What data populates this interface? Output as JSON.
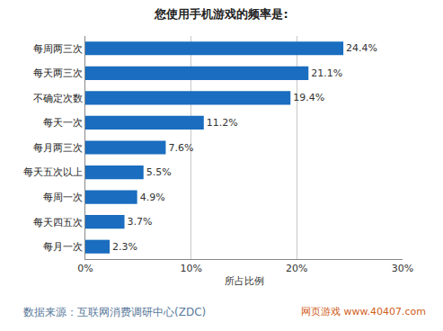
{
  "chart_data": {
    "type": "bar",
    "orientation": "horizontal",
    "title": "您使用手机游戏的频率是:",
    "x_label": "所占比例",
    "categories": [
      "每周两三次",
      "每天两三次",
      "不确定次数",
      "每天一次",
      "每月两三次",
      "每天五次以上",
      "每周一次",
      "每天四五次",
      "每月一次"
    ],
    "values": [
      24.4,
      21.1,
      19.4,
      11.2,
      7.6,
      5.5,
      4.9,
      3.7,
      2.3
    ],
    "value_labels": [
      "24.4%",
      "21.1%",
      "19.4%",
      "11.2%",
      "7.6%",
      "5.5%",
      "4.9%",
      "3.7%",
      "2.3%"
    ],
    "data_labels": true,
    "color": "#1a6dbf",
    "xlim": [
      0,
      30
    ],
    "xticks": [
      {
        "value": 0,
        "label": "0%"
      },
      {
        "value": 10,
        "label": "10%"
      },
      {
        "value": 20,
        "label": "20%"
      },
      {
        "value": 30,
        "label": "30%"
      }
    ],
    "grid": true,
    "annotations": [
      "数据来源：互联网消费调研中心(ZDC)",
      "网页游戏 www.40407.com"
    ]
  }
}
